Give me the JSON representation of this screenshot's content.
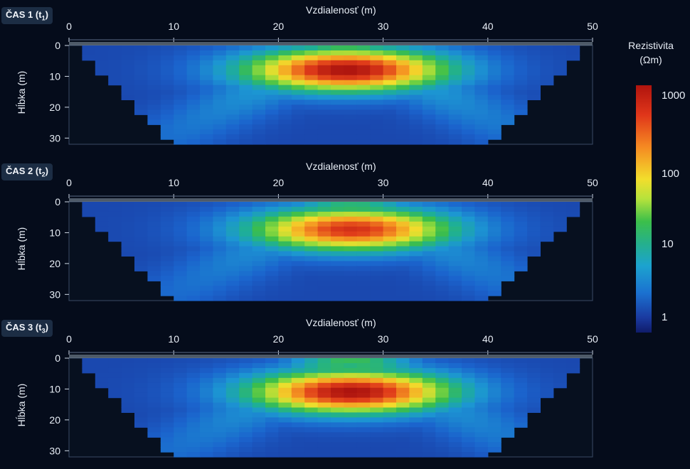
{
  "colorbar": {
    "title_line1": "Rezistivita",
    "title_line2": "(Ωm)",
    "ticks": [
      "1000",
      "100",
      "10",
      "1"
    ],
    "scale": "log",
    "range": [
      1,
      1000
    ],
    "colors": [
      "#101c6a",
      "#1b71d0",
      "#1ca3cf",
      "#3cbf4a",
      "#f2de2c",
      "#f58a22",
      "#b0140e"
    ]
  },
  "chart_data": [
    {
      "type": "heatmap",
      "panel_label": "ČAS 1 (t",
      "panel_sub": "1",
      "panel_suffix": ")",
      "xlabel": "Vzdialenosť (m)",
      "ylabel": "Hĺbka (m)",
      "xticks": [
        0,
        10,
        20,
        30,
        40,
        50
      ],
      "yticks": [
        0,
        10,
        20,
        30
      ],
      "xlim": [
        0,
        50
      ],
      "ylim": [
        0,
        32
      ],
      "anomaly": {
        "x": 26.5,
        "depth": 8,
        "peak_resistivity": 1000
      },
      "background_resistivity": 3
    },
    {
      "type": "heatmap",
      "panel_label": "ČAS 2 (t",
      "panel_sub": "2",
      "panel_suffix": ")",
      "xlabel": "Vzdialenosť (m)",
      "ylabel": "Hĺbka (m)",
      "xticks": [
        0,
        10,
        20,
        30,
        40,
        50
      ],
      "yticks": [
        0,
        10,
        20,
        30
      ],
      "xlim": [
        0,
        50
      ],
      "ylim": [
        0,
        32
      ],
      "anomaly": {
        "x": 27,
        "depth": 9,
        "peak_resistivity": 600
      },
      "background_resistivity": 3
    },
    {
      "type": "heatmap",
      "panel_label": "ČAS 3 (t",
      "panel_sub": "3",
      "panel_suffix": ")",
      "xlabel": "Vzdialenosť (m)",
      "ylabel": "Hĺbka (m)",
      "xticks": [
        0,
        10,
        20,
        30,
        40,
        50
      ],
      "yticks": [
        0,
        10,
        20,
        30
      ],
      "xlim": [
        0,
        50
      ],
      "ylim": [
        0,
        32
      ],
      "anomaly": {
        "x": 27,
        "depth": 11,
        "peak_resistivity": 1000
      },
      "background_resistivity": 3
    }
  ]
}
